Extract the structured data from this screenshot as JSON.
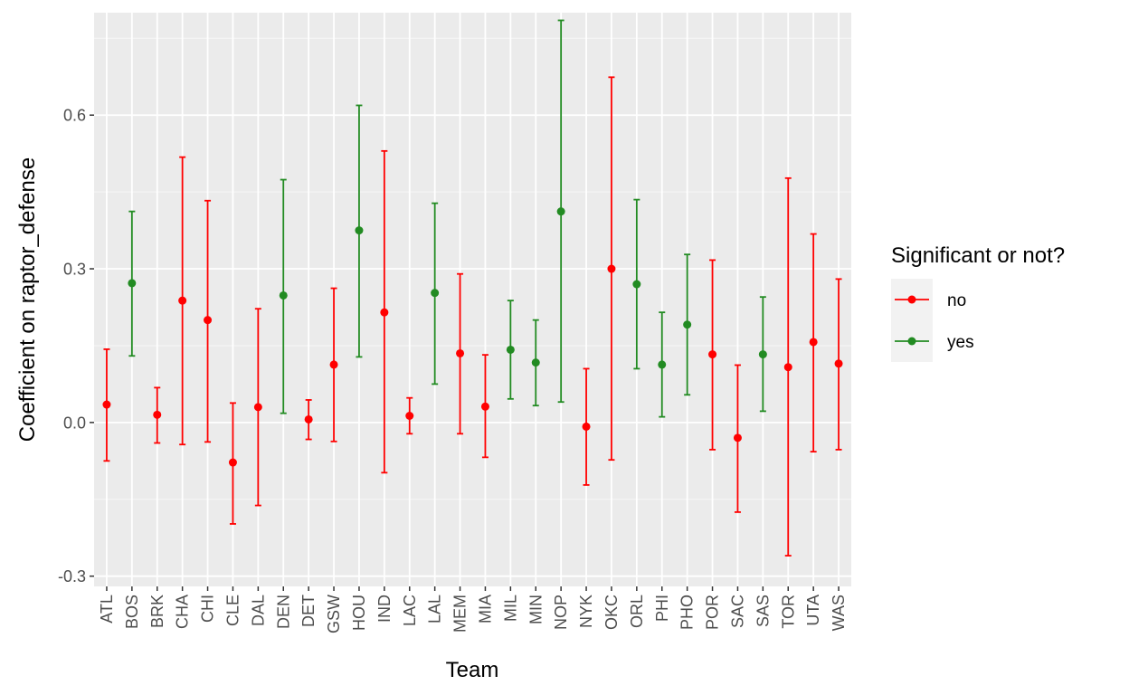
{
  "chart_data": {
    "type": "errorbar",
    "xlabel": "Team",
    "ylabel": "Coefficient on raptor_defense",
    "ylim": [
      -0.32,
      0.8
    ],
    "yticks": [
      -0.3,
      0.0,
      0.3,
      0.6
    ],
    "ytick_labels": [
      "-0.3",
      "0.0",
      "0.3",
      "0.6"
    ],
    "grid": true,
    "legend_position": "right",
    "legend": {
      "title": "Significant or not?",
      "entries": [
        {
          "key": "no",
          "label": "no",
          "color": "#ff0000"
        },
        {
          "key": "yes",
          "label": "yes",
          "color": "#228b22"
        }
      ]
    },
    "points": [
      {
        "team": "ATL",
        "estimate": 0.035,
        "lower": -0.075,
        "upper": 0.143,
        "significant": "no"
      },
      {
        "team": "BOS",
        "estimate": 0.272,
        "lower": 0.13,
        "upper": 0.412,
        "significant": "yes"
      },
      {
        "team": "BRK",
        "estimate": 0.015,
        "lower": -0.04,
        "upper": 0.068,
        "significant": "no"
      },
      {
        "team": "CHA",
        "estimate": 0.238,
        "lower": -0.043,
        "upper": 0.518,
        "significant": "no"
      },
      {
        "team": "CHI",
        "estimate": 0.2,
        "lower": -0.038,
        "upper": 0.433,
        "significant": "no"
      },
      {
        "team": "CLE",
        "estimate": -0.078,
        "lower": -0.198,
        "upper": 0.038,
        "significant": "no"
      },
      {
        "team": "DAL",
        "estimate": 0.03,
        "lower": -0.162,
        "upper": 0.222,
        "significant": "no"
      },
      {
        "team": "DEN",
        "estimate": 0.248,
        "lower": 0.018,
        "upper": 0.474,
        "significant": "yes"
      },
      {
        "team": "DET",
        "estimate": 0.006,
        "lower": -0.033,
        "upper": 0.044,
        "significant": "no"
      },
      {
        "team": "GSW",
        "estimate": 0.113,
        "lower": -0.037,
        "upper": 0.262,
        "significant": "no"
      },
      {
        "team": "HOU",
        "estimate": 0.375,
        "lower": 0.128,
        "upper": 0.619,
        "significant": "yes"
      },
      {
        "team": "IND",
        "estimate": 0.215,
        "lower": -0.098,
        "upper": 0.53,
        "significant": "no"
      },
      {
        "team": "LAC",
        "estimate": 0.013,
        "lower": -0.022,
        "upper": 0.048,
        "significant": "no"
      },
      {
        "team": "LAL",
        "estimate": 0.253,
        "lower": 0.075,
        "upper": 0.428,
        "significant": "yes"
      },
      {
        "team": "MEM",
        "estimate": 0.135,
        "lower": -0.022,
        "upper": 0.29,
        "significant": "no"
      },
      {
        "team": "MIA",
        "estimate": 0.031,
        "lower": -0.068,
        "upper": 0.132,
        "significant": "no"
      },
      {
        "team": "MIL",
        "estimate": 0.142,
        "lower": 0.046,
        "upper": 0.238,
        "significant": "yes"
      },
      {
        "team": "MIN",
        "estimate": 0.117,
        "lower": 0.033,
        "upper": 0.2,
        "significant": "yes"
      },
      {
        "team": "NOP",
        "estimate": 0.412,
        "lower": 0.04,
        "upper": 0.785,
        "significant": "yes"
      },
      {
        "team": "NYK",
        "estimate": -0.008,
        "lower": -0.122,
        "upper": 0.105,
        "significant": "no"
      },
      {
        "team": "OKC",
        "estimate": 0.3,
        "lower": -0.073,
        "upper": 0.674,
        "significant": "no"
      },
      {
        "team": "ORL",
        "estimate": 0.27,
        "lower": 0.105,
        "upper": 0.435,
        "significant": "yes"
      },
      {
        "team": "PHI",
        "estimate": 0.113,
        "lower": 0.011,
        "upper": 0.215,
        "significant": "yes"
      },
      {
        "team": "PHO",
        "estimate": 0.191,
        "lower": 0.054,
        "upper": 0.328,
        "significant": "yes"
      },
      {
        "team": "POR",
        "estimate": 0.133,
        "lower": -0.053,
        "upper": 0.317,
        "significant": "no"
      },
      {
        "team": "SAC",
        "estimate": -0.03,
        "lower": -0.175,
        "upper": 0.112,
        "significant": "no"
      },
      {
        "team": "SAS",
        "estimate": 0.133,
        "lower": 0.022,
        "upper": 0.245,
        "significant": "yes"
      },
      {
        "team": "TOR",
        "estimate": 0.108,
        "lower": -0.26,
        "upper": 0.477,
        "significant": "no"
      },
      {
        "team": "UTA",
        "estimate": 0.157,
        "lower": -0.057,
        "upper": 0.368,
        "significant": "no"
      },
      {
        "team": "WAS",
        "estimate": 0.115,
        "lower": -0.053,
        "upper": 0.28,
        "significant": "no"
      }
    ]
  }
}
